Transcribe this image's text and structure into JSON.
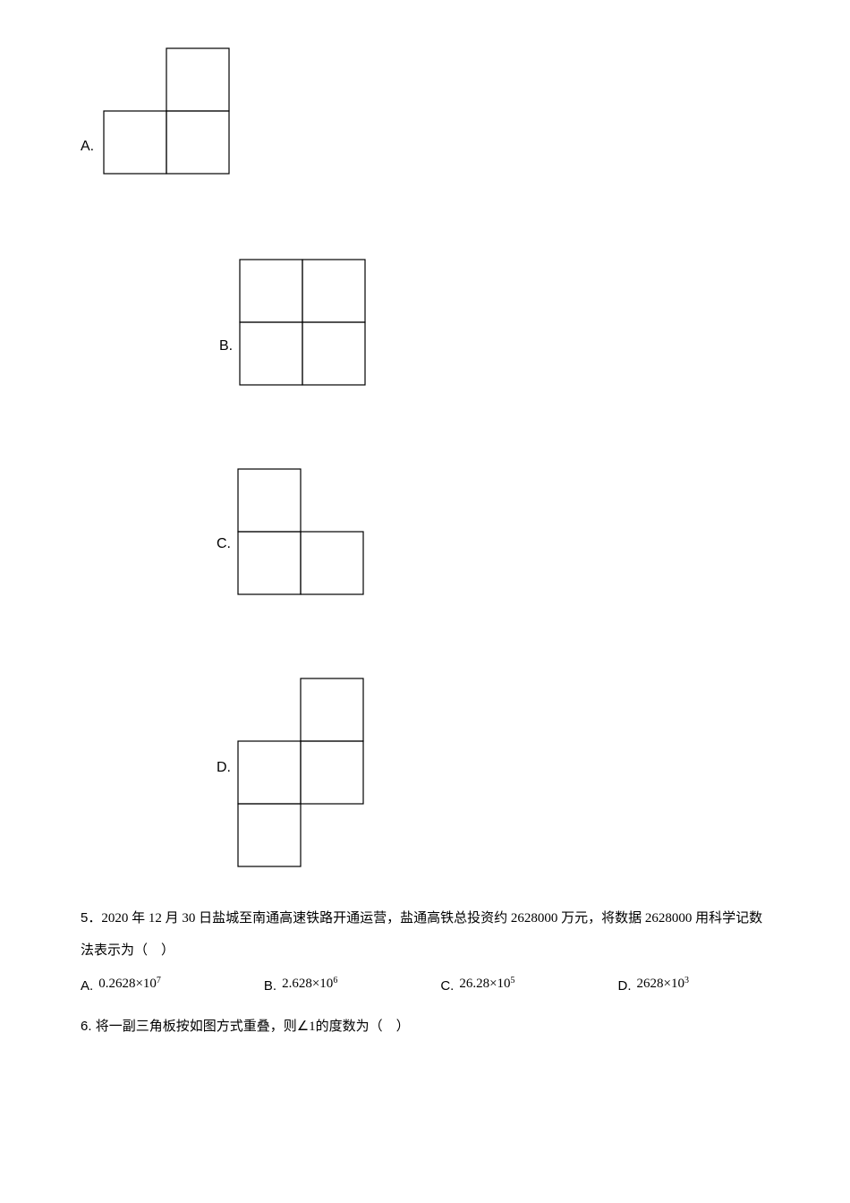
{
  "options4": {
    "A": {
      "label": "A."
    },
    "B": {
      "label": "B."
    },
    "C": {
      "label": "C."
    },
    "D": {
      "label": "D."
    }
  },
  "figures": {
    "stroke_color": "#000000",
    "stroke_width": 1.2,
    "cell": 70,
    "A": {
      "cells": [
        {
          "r": 0,
          "c": 1
        },
        {
          "r": 1,
          "c": 0
        },
        {
          "r": 1,
          "c": 1
        }
      ]
    },
    "B": {
      "cells": [
        {
          "r": 0,
          "c": 0
        },
        {
          "r": 0,
          "c": 1
        },
        {
          "r": 1,
          "c": 0
        },
        {
          "r": 1,
          "c": 1
        }
      ]
    },
    "C": {
      "cells": [
        {
          "r": 0,
          "c": 0
        },
        {
          "r": 1,
          "c": 0
        },
        {
          "r": 1,
          "c": 1
        }
      ]
    },
    "D": {
      "cells": [
        {
          "r": 0,
          "c": 1
        },
        {
          "r": 1,
          "c": 0
        },
        {
          "r": 1,
          "c": 1
        },
        {
          "r": 2,
          "c": 0
        }
      ]
    }
  },
  "q5": {
    "number": "5．",
    "text": "2020 年 12 月 30 日盐城至南通高速铁路开通运营，盐通高铁总投资约 2628000 万元，将数据 2628000 用科学记数法表示为（　）",
    "answers": {
      "A": {
        "label": "A.",
        "mantissa": "0.2628",
        "exp": "7"
      },
      "B": {
        "label": "B.",
        "mantissa": "2.628",
        "exp": "6"
      },
      "C": {
        "label": "C.",
        "mantissa": "26.28",
        "exp": "5"
      },
      "D": {
        "label": "D.",
        "mantissa": "2628",
        "exp": "3"
      }
    }
  },
  "q6": {
    "number": "6. ",
    "text_before": "将一副三角板按如图方式重叠，则",
    "angle": "∠1",
    "text_after": "的度数为（　）"
  }
}
